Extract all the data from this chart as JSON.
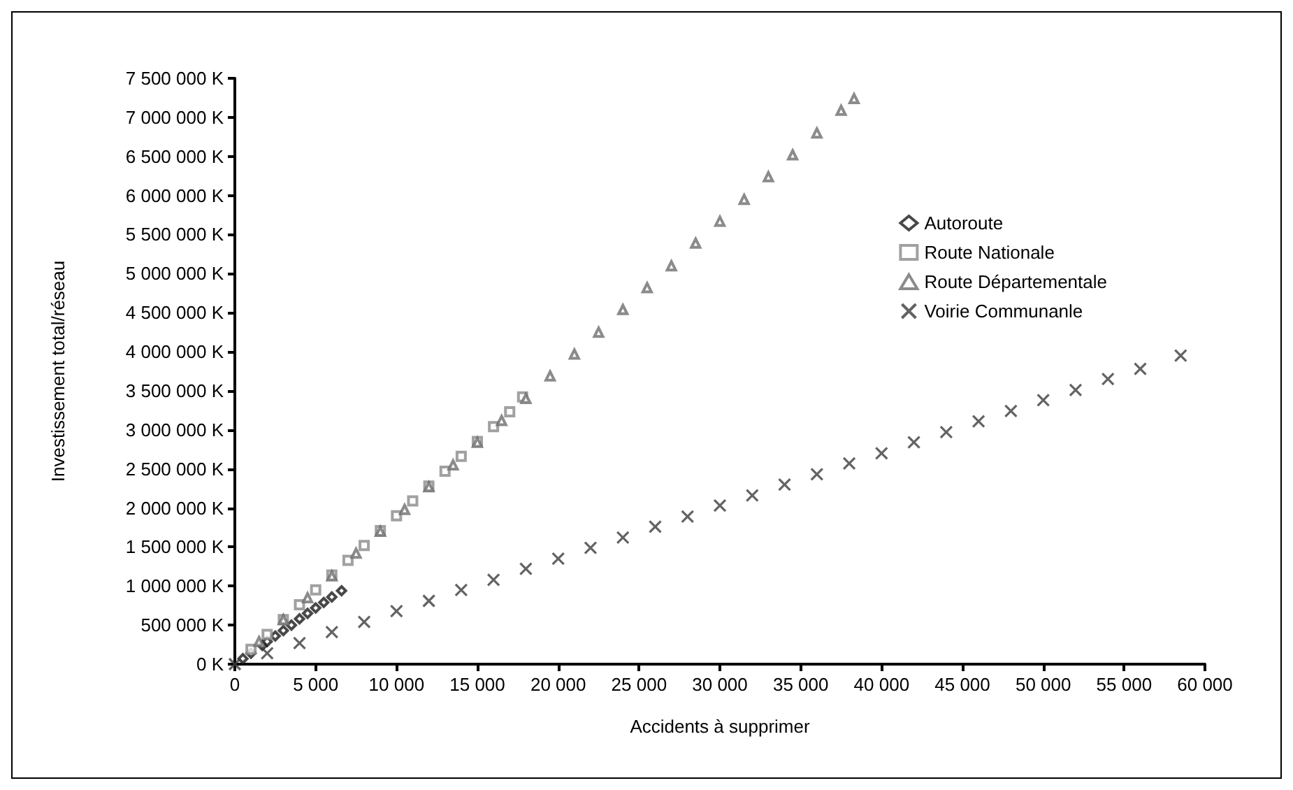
{
  "chart_data": {
    "type": "scatter",
    "xlabel": "Accidents à supprimer",
    "ylabel": "Investissement total/réseau",
    "xlim": [
      0,
      60000
    ],
    "xticks": [
      0,
      {
        "value": 5000,
        "label": "5 000"
      },
      {
        "value": 10000,
        "label": "10 000"
      },
      {
        "value": 15000,
        "label": "15 000"
      },
      {
        "value": 20000,
        "label": "20 000"
      },
      {
        "value": 25000,
        "label": "25 000"
      },
      {
        "value": 30000,
        "label": "30 000"
      },
      {
        "value": 35000,
        "label": "35 000"
      },
      {
        "value": 40000,
        "label": "40 000"
      },
      {
        "value": 45000,
        "label": "45 000"
      },
      {
        "value": 50000,
        "label": "50 000"
      },
      {
        "value": 55000,
        "label": "55 000"
      },
      {
        "value": 60000,
        "label": "60 000"
      }
    ],
    "ylim": [
      0,
      7500000
    ],
    "yticks": [
      {
        "value": 0,
        "label": "0 K"
      },
      {
        "value": 500000,
        "label": "500 000 K"
      },
      {
        "value": 1000000,
        "label": "1 000 000 K"
      },
      {
        "value": 1500000,
        "label": "1 500 000 K"
      },
      {
        "value": 2000000,
        "label": "2 000 000 K"
      },
      {
        "value": 2500000,
        "label": "2 500 000 K"
      },
      {
        "value": 3000000,
        "label": "3 000 000 K"
      },
      {
        "value": 3500000,
        "label": "3 500 000 K"
      },
      {
        "value": 4000000,
        "label": "4 000 000 K"
      },
      {
        "value": 4500000,
        "label": "4 500 000 K"
      },
      {
        "value": 5000000,
        "label": "5 000 000 K"
      },
      {
        "value": 5500000,
        "label": "5 500 000 K"
      },
      {
        "value": 6000000,
        "label": "6 000 000 K"
      },
      {
        "value": 6500000,
        "label": "6 500 000 K"
      },
      {
        "value": 7000000,
        "label": "7 000 000 K"
      },
      {
        "value": 7500000,
        "label": "7 500 000 K"
      }
    ],
    "grid": false,
    "legend": "top right",
    "series": [
      {
        "name": "Autoroute",
        "color": "#1a1a1a",
        "marker": "diamond",
        "x": [
          500,
          1000,
          1700,
          2000,
          2500,
          3000,
          3500,
          4000,
          4500,
          5000,
          5500,
          6000,
          6600
        ],
        "values": [
          70000,
          140000,
          240000,
          290000,
          360000,
          430000,
          500000,
          580000,
          650000,
          720000,
          790000,
          860000,
          940000
        ]
      },
      {
        "name": "Route Nationale",
        "color": "#8a8a8a",
        "marker": "square",
        "x": [
          1000,
          2000,
          3000,
          4000,
          5000,
          6000,
          7000,
          8000,
          9000,
          10000,
          11000,
          12000,
          13000,
          14000,
          15000,
          16000,
          17000,
          17800
        ],
        "values": [
          190000,
          380000,
          570000,
          760000,
          950000,
          1140000,
          1330000,
          1520000,
          1710000,
          1900000,
          2090000,
          2280000,
          2470000,
          2660000,
          2850000,
          3040000,
          3230000,
          3420000
        ]
      },
      {
        "name": "Route Départementale",
        "color": "#6e6e6e",
        "marker": "triangle",
        "x": [
          1500,
          3000,
          4500,
          6000,
          7500,
          9000,
          10500,
          12000,
          13500,
          15000,
          16500,
          18000,
          19500,
          21000,
          22500,
          24000,
          25500,
          27000,
          28500,
          30000,
          31500,
          33000,
          34500,
          36000,
          37500,
          38300
        ],
        "values": [
          290000,
          570000,
          850000,
          1130000,
          1420000,
          1700000,
          1980000,
          2270000,
          2550000,
          2840000,
          3120000,
          3400000,
          3690000,
          3970000,
          4250000,
          4540000,
          4820000,
          5100000,
          5390000,
          5670000,
          5950000,
          6240000,
          6520000,
          6800000,
          7090000,
          7240000
        ]
      },
      {
        "name": "Voirie Communanle",
        "color": "#3c3c3c",
        "marker": "cross",
        "x": [
          0,
          2000,
          4000,
          6000,
          8000,
          10000,
          12000,
          14000,
          16000,
          18000,
          20000,
          22000,
          24000,
          26000,
          28000,
          30000,
          32000,
          34000,
          36000,
          38000,
          40000,
          42000,
          44000,
          46000,
          48000,
          50000,
          52000,
          54000,
          56000,
          58500
        ],
        "values": [
          0,
          140000,
          270000,
          410000,
          540000,
          680000,
          810000,
          950000,
          1080000,
          1220000,
          1350000,
          1490000,
          1620000,
          1760000,
          1890000,
          2030000,
          2160000,
          2300000,
          2430000,
          2570000,
          2700000,
          2840000,
          2970000,
          3110000,
          3240000,
          3380000,
          3510000,
          3650000,
          3780000,
          3950000
        ]
      }
    ]
  }
}
